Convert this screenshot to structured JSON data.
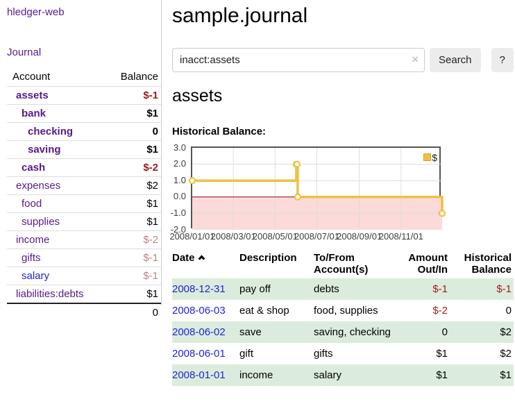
{
  "app": {
    "brand": "hledger-web"
  },
  "nav": {
    "journal": "Journal"
  },
  "sidebar": {
    "headers": {
      "account": "Account",
      "balance": "Balance"
    },
    "accounts": [
      {
        "label": "assets",
        "indent": 1,
        "bold": true,
        "link": "purple",
        "value": "$-1",
        "value_style": "neg"
      },
      {
        "label": "bank",
        "indent": 2,
        "bold": true,
        "link": "purple",
        "value": "$1",
        "value_style": "pos"
      },
      {
        "label": "checking",
        "indent": 3,
        "bold": true,
        "link": "purple",
        "value": "0",
        "value_style": "pos"
      },
      {
        "label": "saving",
        "indent": 3,
        "bold": true,
        "link": "purple",
        "value": "$1",
        "value_style": "pos"
      },
      {
        "label": "cash",
        "indent": 2,
        "bold": true,
        "link": "purple",
        "value": "$-2",
        "value_style": "neg"
      },
      {
        "label": "expenses",
        "indent": 1,
        "bold": false,
        "link": "purple",
        "value": "$2",
        "value_style": "pos"
      },
      {
        "label": "food",
        "indent": 2,
        "bold": false,
        "link": "purple",
        "value": "$1",
        "value_style": "pos"
      },
      {
        "label": "supplies",
        "indent": 2,
        "bold": false,
        "link": "purple",
        "value": "$1",
        "value_style": "pos"
      },
      {
        "label": "income",
        "indent": 1,
        "bold": false,
        "link": "purple",
        "value": "$-2",
        "value_style": "neg-muted"
      },
      {
        "label": "gifts",
        "indent": 2,
        "bold": false,
        "link": "purple",
        "value": "$-1",
        "value_style": "neg-muted"
      },
      {
        "label": "salary",
        "indent": 2,
        "bold": false,
        "link": "blue",
        "value": "$-1",
        "value_style": "neg-muted"
      },
      {
        "label": "liabilities:debts",
        "indent": 1,
        "bold": false,
        "link": "purple",
        "value": "$1",
        "value_style": "pos"
      }
    ],
    "total": "0"
  },
  "header": {
    "title": "sample.journal"
  },
  "search": {
    "value": "inacct:assets",
    "clear_icon": "×",
    "button_label": "Search",
    "help_label": "?"
  },
  "account_page": {
    "title": "assets",
    "chart_label": "Historical Balance:"
  },
  "chart_data": {
    "type": "line",
    "title": "Historical Balance",
    "step": true,
    "series": [
      {
        "name": "$",
        "color": "#edc240",
        "points": [
          [
            "2008-01-01",
            1
          ],
          [
            "2008-06-01",
            2
          ],
          [
            "2008-06-02",
            2
          ],
          [
            "2008-06-03",
            0
          ],
          [
            "2008-12-31",
            -1
          ]
        ]
      }
    ],
    "x_range": [
      "2008-01-01",
      "2008-12-31"
    ],
    "ylim": [
      -2,
      3
    ],
    "y_ticks": [
      3.0,
      2.0,
      1.0,
      0.0,
      -1.0,
      -2.0
    ],
    "x_ticks": [
      {
        "date": "2008-01-01",
        "label": "2008/01/01"
      },
      {
        "date": "2008-03-01",
        "label": "2008/03/01"
      },
      {
        "date": "2008-05-01",
        "label": "2008/05/01"
      },
      {
        "date": "2008-07-01",
        "label": "2008/07/01"
      },
      {
        "date": "2008-09-01",
        "label": "2008/09/01"
      },
      {
        "date": "2008-11-01",
        "label": "2008/11/01"
      }
    ],
    "legend": {
      "label": "$",
      "position": "top-right"
    },
    "grid": true,
    "colors": {
      "grid_line": "#dcdcdc",
      "negative_region": "#fcdada",
      "zero_line": "#8b0000",
      "plot_border": "#545454"
    }
  },
  "transactions": {
    "headers": {
      "date": "Date",
      "sort": "ascending",
      "description": "Description",
      "accounts": "To/From Account(s)",
      "amount": "Amount Out/In",
      "balance": "Historical Balance"
    },
    "rows": [
      {
        "date": "2008-12-31",
        "description": "pay off",
        "accounts": "debts",
        "amount": "$-1",
        "amount_style": "neg",
        "balance": "$-1",
        "balance_style": "neg"
      },
      {
        "date": "2008-06-03",
        "description": "eat & shop",
        "accounts": "food, supplies",
        "amount": "$-2",
        "amount_style": "neg",
        "balance": "0",
        "balance_style": "pos"
      },
      {
        "date": "2008-06-02",
        "description": "save",
        "accounts": "saving, checking",
        "amount": "0",
        "amount_style": "pos",
        "balance": "$2",
        "balance_style": "pos"
      },
      {
        "date": "2008-06-01",
        "description": "gift",
        "accounts": "gifts",
        "amount": "$1",
        "amount_style": "pos",
        "balance": "$2",
        "balance_style": "pos"
      },
      {
        "date": "2008-01-01",
        "description": "income",
        "accounts": "salary",
        "amount": "$1",
        "amount_style": "pos",
        "balance": "$1",
        "balance_style": "pos"
      }
    ]
  },
  "palette": {
    "link_purple": "#551a8b",
    "link_blue": "#2222dd",
    "negative": "#9d1c1c",
    "negative_muted": "#c28181",
    "row_stripe_green": "#dcecdc",
    "chart_line": "#edc240"
  }
}
